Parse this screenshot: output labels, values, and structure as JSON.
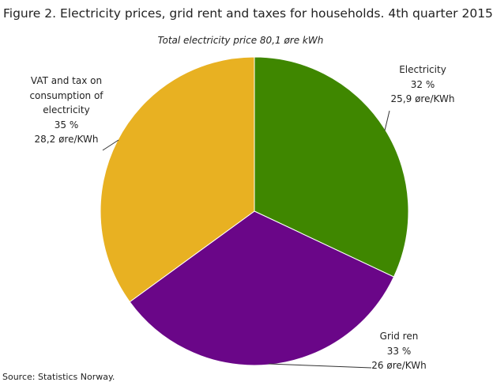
{
  "chart_data": {
    "type": "pie",
    "title": "Figure 2. Electricity prices, grid rent and taxes for households. 4th quarter 2015",
    "subtitle": "Total electricity price 80,1 øre kWh",
    "categories": [
      "Electricity",
      "Grid ren",
      "VAT and tax on consumption of electricity"
    ],
    "values": [
      32,
      33,
      35
    ],
    "value_labels": [
      "32 %",
      "33 %",
      "35 %"
    ],
    "amount_labels": [
      "25,9 øre/KWh",
      "26 øre/KWh",
      "28,2 øre/KWh"
    ],
    "colors": [
      "#3f8700",
      "#6a0688",
      "#e8b122"
    ],
    "source": "Source: Statistics Norway."
  }
}
